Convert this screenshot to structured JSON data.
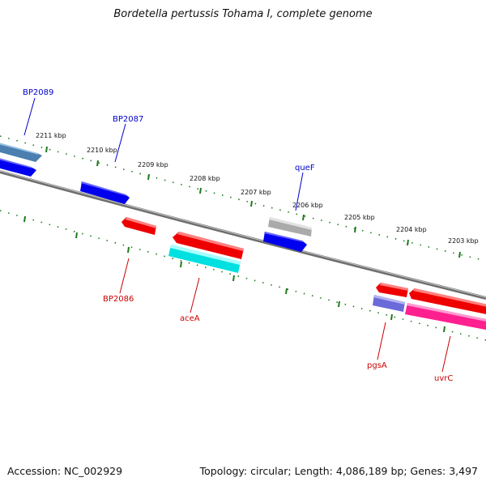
{
  "title": "Bordetella pertussis Tohama I, complete genome",
  "footer": {
    "accession": "Accession: NC_002929",
    "stats": "Topology: circular; Length: 4,086,189 bp; Genes: 3,497"
  },
  "ticks": [
    "2211 kbp",
    "2210 kbp",
    "2209 kbp",
    "2208 kbp",
    "2207 kbp",
    "2206 kbp",
    "2205 kbp",
    "2204 kbp",
    "2203 kbp"
  ],
  "labels": {
    "BP2089": "BP2089",
    "BP2087": "BP2087",
    "queF": "queF",
    "BP2086": "BP2086",
    "aceA": "aceA",
    "pgsA": "pgsA",
    "uvrC": "uvrC"
  },
  "colors": {
    "backbone": "#808080",
    "tick": "#1e7a1e",
    "label_forward": "#0000cc",
    "label_reverse": "#cc0000",
    "gene_blue": "#0000ee",
    "gene_steel": "#4a7fb0",
    "gene_gray": "#b0b0b0",
    "gene_red": "#ee0000",
    "gene_cyan": "#00e8e8",
    "gene_slate": "#6a6ad8",
    "gene_pink": "#ff2090"
  }
}
